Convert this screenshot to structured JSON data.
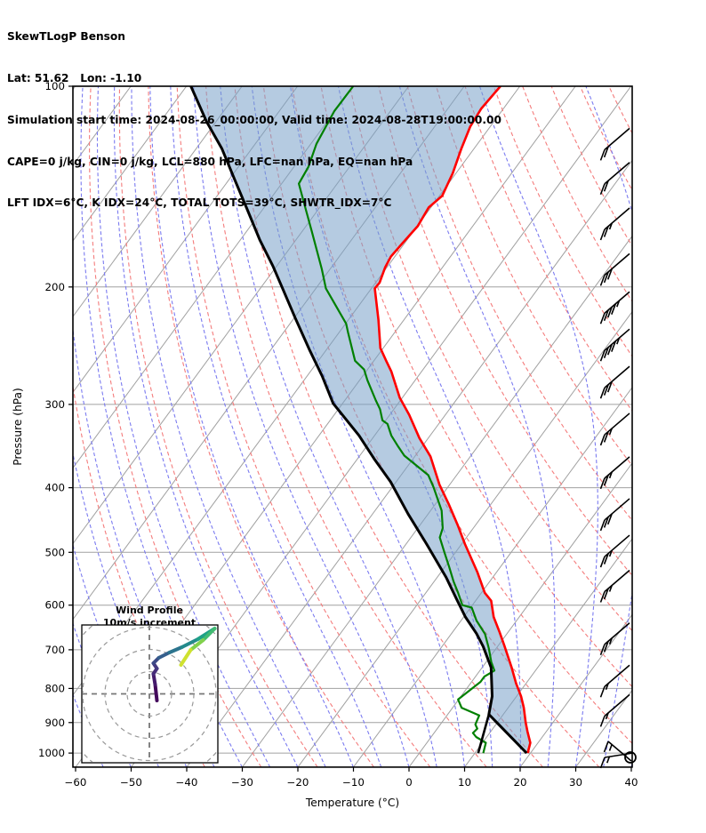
{
  "header": {
    "title": "SkewTLogP Benson",
    "location_line": "Lat: 51.62   Lon: -1.10",
    "time_line": "Simulation start time: 2024-08-26_00:00:00, Valid time: 2024-08-28T19:00:00.00",
    "indices_line1": "CAPE=0 j/kg, CIN=0 j/kg, LCL=880 hPa, LFC=nan hPa, EQ=nan hPa",
    "indices_line2": "LFT IDX=6°C, K IDX=24°C, TOTAL TOTS=39°C, SHWTR_IDX=7°C"
  },
  "chart_data": {
    "type": "line",
    "subtype": "skewt-logp-sounding",
    "xlabel": "Temperature (°C)",
    "ylabel": "Pressure (hPa)",
    "x_ticks": [
      -60,
      -50,
      -40,
      -30,
      -20,
      -10,
      0,
      10,
      20,
      30,
      40
    ],
    "y_ticks": [
      100,
      200,
      300,
      400,
      500,
      600,
      700,
      800,
      900,
      1000
    ],
    "pressure_range": [
      100,
      1050
    ],
    "grid": {
      "isotherm_step_c": 10,
      "dry_adiabats_c": {
        "min": -40,
        "max": 170,
        "step": 10
      },
      "moist_adiabats_c": {
        "min": -55,
        "max": 45,
        "step": 5
      }
    },
    "temperature_profile": [
      [
        100,
        -73.5
      ],
      [
        108,
        -74.0
      ],
      [
        115,
        -73.6
      ],
      [
        124,
        -72.3
      ],
      [
        135,
        -70.6
      ],
      [
        146,
        -69.5
      ],
      [
        152,
        -70.4
      ],
      [
        162,
        -69.9
      ],
      [
        172,
        -70.4
      ],
      [
        180,
        -70.7
      ],
      [
        187,
        -70.3
      ],
      [
        197,
        -69.3
      ],
      [
        201,
        -69.4
      ],
      [
        224,
        -64.6
      ],
      [
        247,
        -60.5
      ],
      [
        258,
        -57.8
      ],
      [
        268,
        -55.4
      ],
      [
        293,
        -50.5
      ],
      [
        311,
        -46.5
      ],
      [
        337,
        -41.6
      ],
      [
        359,
        -37.2
      ],
      [
        396,
        -31.8
      ],
      [
        424,
        -27.5
      ],
      [
        456,
        -23.1
      ],
      [
        486,
        -19.4
      ],
      [
        536,
        -13.4
      ],
      [
        575,
        -9.4
      ],
      [
        591,
        -7.2
      ],
      [
        625,
        -4.6
      ],
      [
        659,
        -1.5
      ],
      [
        690,
        1.1
      ],
      [
        744,
        5.3
      ],
      [
        786,
        8.2
      ],
      [
        822,
        10.8
      ],
      [
        855,
        12.8
      ],
      [
        900,
        15.1
      ],
      [
        928,
        16.6
      ],
      [
        965,
        18.6
      ],
      [
        1000,
        19.5
      ]
    ],
    "dewpoint_profile": [
      [
        100,
        -100.0
      ],
      [
        109,
        -100.1
      ],
      [
        122,
        -99.0
      ],
      [
        132,
        -97.4
      ],
      [
        140,
        -96.9
      ],
      [
        152,
        -92.6
      ],
      [
        165,
        -88.3
      ],
      [
        188,
        -81.5
      ],
      [
        201,
        -78.2
      ],
      [
        227,
        -69.9
      ],
      [
        234,
        -68.4
      ],
      [
        258,
        -63.4
      ],
      [
        266,
        -60.6
      ],
      [
        276,
        -58.6
      ],
      [
        296,
        -54.4
      ],
      [
        305,
        -52.5
      ],
      [
        317,
        -50.6
      ],
      [
        321,
        -49.2
      ],
      [
        334,
        -47.0
      ],
      [
        347,
        -44.3
      ],
      [
        358,
        -42.0
      ],
      [
        383,
        -35.1
      ],
      [
        399,
        -32.6
      ],
      [
        433,
        -28.0
      ],
      [
        460,
        -25.5
      ],
      [
        475,
        -24.8
      ],
      [
        500,
        -22.0
      ],
      [
        525,
        -19.3
      ],
      [
        553,
        -16.5
      ],
      [
        575,
        -14.2
      ],
      [
        600,
        -11.8
      ],
      [
        605,
        -9.8
      ],
      [
        633,
        -7.2
      ],
      [
        663,
        -3.9
      ],
      [
        697,
        -1.3
      ],
      [
        730,
        0.9
      ],
      [
        752,
        2.6
      ],
      [
        768,
        1.6
      ],
      [
        782,
        1.6
      ],
      [
        831,
        -0.1
      ],
      [
        855,
        1.6
      ],
      [
        878,
        5.8
      ],
      [
        906,
        6.3
      ],
      [
        919,
        7.2
      ],
      [
        933,
        7.0
      ],
      [
        946,
        8.1
      ],
      [
        965,
        10.6
      ],
      [
        1000,
        11.5
      ]
    ],
    "parcel_profile": [
      [
        100,
        -129.2
      ],
      [
        113,
        -121.7
      ],
      [
        124,
        -115.4
      ],
      [
        138,
        -109.0
      ],
      [
        153,
        -102.8
      ],
      [
        170,
        -96.5
      ],
      [
        186,
        -90.7
      ],
      [
        200,
        -86.3
      ],
      [
        223,
        -79.7
      ],
      [
        249,
        -72.9
      ],
      [
        272,
        -67.3
      ],
      [
        299,
        -61.7
      ],
      [
        334,
        -52.8
      ],
      [
        362,
        -47.0
      ],
      [
        392,
        -41.0
      ],
      [
        438,
        -33.6
      ],
      [
        486,
        -26.3
      ],
      [
        545,
        -18.4
      ],
      [
        588,
        -13.6
      ],
      [
        625,
        -9.7
      ],
      [
        662,
        -5.5
      ],
      [
        692,
        -2.6
      ],
      [
        744,
        1.6
      ],
      [
        822,
        5.6
      ],
      [
        875,
        7.4
      ]
    ],
    "lcl_point": {
      "pressure": 875,
      "temp": 7.4
    },
    "parcel_surface": {
      "pressure": 1000,
      "temp": 19.3
    },
    "mixing_line_surface": {
      "pressure": 1000,
      "temp": 10.6
    },
    "wind_barbs_kt": [
      [
        120,
        20
      ],
      [
        135,
        20
      ],
      [
        158,
        25
      ],
      [
        185,
        30
      ],
      [
        211,
        45
      ],
      [
        240,
        45
      ],
      [
        273,
        30
      ],
      [
        321,
        25
      ],
      [
        373,
        25
      ],
      [
        431,
        30
      ],
      [
        489,
        25
      ],
      [
        552,
        25
      ],
      [
        662,
        25
      ],
      [
        766,
        15
      ],
      [
        848,
        15
      ]
    ],
    "surface_station_circle": true,
    "hodograph": {
      "title": "Wind Profile",
      "subtitle": "10m/s increment",
      "ring_interval_ms": 10,
      "rings_ms": [
        10,
        20,
        30,
        40
      ],
      "trace_uvf": [
        [
          3.4,
          -3.0,
          0.0
        ],
        [
          2.6,
          4.2,
          0.05
        ],
        [
          1.8,
          9.0,
          0.1
        ],
        [
          3.4,
          11.4,
          0.14
        ],
        [
          1.8,
          13.8,
          0.18
        ],
        [
          4.2,
          16.2,
          0.25
        ],
        [
          9.0,
          18.6,
          0.33
        ],
        [
          14.6,
          21.0,
          0.42
        ],
        [
          21.8,
          24.6,
          0.52
        ],
        [
          29.4,
          29.4,
          0.62
        ],
        [
          24.2,
          24.2,
          0.75
        ],
        [
          18.6,
          19.8,
          0.85
        ],
        [
          14.2,
          13.0,
          1.0
        ]
      ]
    },
    "colors": {
      "temperature": "#ff0000",
      "dewpoint": "#008000",
      "parcel": "#000000",
      "fill": "rgba(120,160,200,0.55)",
      "isotherm": "#a0a0a0",
      "pressure_grid": "#a0a0a0",
      "dry_adiabat": "#f47c7c",
      "moist_adiabat": "#7b7bf0",
      "barb": "#000000",
      "hodo_ring": "#999999"
    }
  }
}
